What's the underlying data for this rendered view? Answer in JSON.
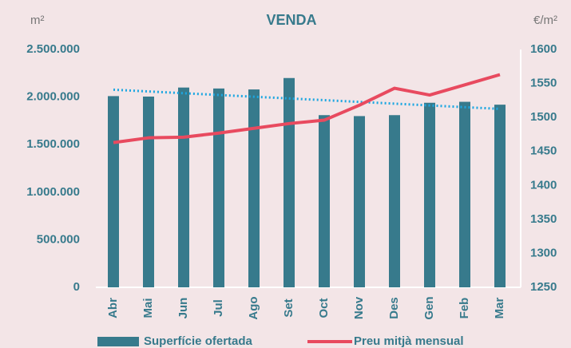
{
  "chart_data": {
    "type": "bar_line",
    "title": "VENDA",
    "y_label": "m²",
    "y2_label": "€/m²",
    "categories": [
      "Abr",
      "Mai",
      "Jun",
      "Jul",
      "Ago",
      "Set",
      "Oct",
      "Nov",
      "Des",
      "Gen",
      "Feb",
      "Mar"
    ],
    "series": [
      {
        "name": "Superfície ofertada",
        "type": "bar",
        "color": "#377a8c",
        "axis": "y",
        "values": [
          2010000,
          2005000,
          2100000,
          2090000,
          2080000,
          2200000,
          1810000,
          1800000,
          1810000,
          1940000,
          1950000,
          1920000
        ]
      },
      {
        "name": "Preu mitjà mensual",
        "type": "line",
        "color": "#e84a5f",
        "axis": "y2",
        "values": [
          1463,
          1470,
          1471,
          1477,
          1484,
          1491,
          1496,
          1518,
          1543,
          1533,
          1548,
          1563
        ]
      }
    ],
    "trendline": true,
    "trendline_color": "#1ea7e1",
    "ylim": [
      0,
      2500000
    ],
    "yticks": [
      0,
      {
        "value": 500000,
        "label": "500.000"
      },
      {
        "value": 1000000,
        "label": "1.000.000"
      },
      {
        "value": 1500000,
        "label": "1.500.000"
      },
      {
        "value": 2000000,
        "label": "2.000.000"
      },
      {
        "value": 2500000,
        "label": "2.500.000"
      }
    ],
    "y2lim": [
      1250,
      1600
    ],
    "y2ticks": [
      1250,
      1300,
      1350,
      1400,
      1450,
      1500,
      1550,
      1600
    ]
  }
}
